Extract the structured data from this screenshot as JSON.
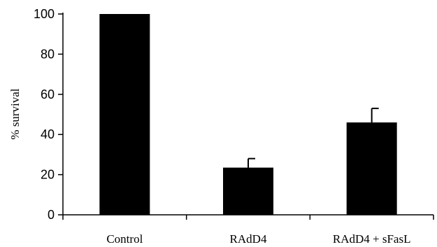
{
  "chart_data": {
    "type": "bar",
    "categories": [
      "Control",
      "RAdD4",
      "RAdD4 + sFasL"
    ],
    "values": [
      100,
      23.5,
      46
    ],
    "error": [
      0,
      4.5,
      7
    ],
    "ylabel": "% survival",
    "xlabel": "",
    "ylim": [
      0,
      100
    ],
    "yticks": [
      0,
      20,
      40,
      60,
      80,
      100
    ],
    "grid": false,
    "bar_color": "#000000"
  }
}
